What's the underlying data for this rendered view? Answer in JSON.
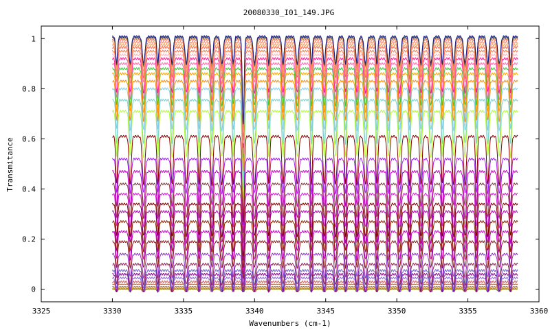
{
  "chart_data": {
    "type": "line",
    "title": "20080330_I01_149.JPG",
    "xlabel": "Wavenumbers (cm-1)",
    "ylabel": "Transmitance",
    "xlim": [
      3325,
      3360
    ],
    "ylim": [
      -0.05,
      1.05
    ],
    "x_range": [
      3330,
      3358.5
    ],
    "x_ticks": [
      "3325",
      "3330",
      "3335",
      "3340",
      "3345",
      "3350",
      "3355",
      "3360"
    ],
    "y_ticks": [
      "0",
      "0.2",
      "0.4",
      "0.6",
      "0.8",
      "1"
    ],
    "x_tick_values": [
      3325,
      3330,
      3335,
      3340,
      3345,
      3350,
      3355,
      3360
    ],
    "y_tick_values": [
      0,
      0.2,
      0.4,
      0.6,
      0.8,
      1
    ],
    "grid": false,
    "legend": "none",
    "absorption_lines": [
      3330.3,
      3331.25,
      3332.2,
      3333.2,
      3334.2,
      3335.2,
      3336.1,
      3337.0,
      3337.7,
      3338.5,
      3339.2,
      3340.0,
      3341.0,
      3342.0,
      3343.0,
      3344.0,
      3344.9,
      3345.7,
      3346.4,
      3347.2,
      3347.8,
      3348.6,
      3349.4,
      3350.2,
      3350.9,
      3351.7,
      3352.4,
      3353.2,
      3354.0,
      3354.8,
      3355.6,
      3356.4,
      3357.2,
      3358.0
    ],
    "series": [
      {
        "baseline": 0.0,
        "color": "#808000"
      },
      {
        "baseline": 0.004,
        "color": "#b8860b"
      },
      {
        "baseline": 0.01,
        "color": "#8b4513"
      },
      {
        "baseline": 0.02,
        "color": "#a0522d"
      },
      {
        "baseline": 0.03,
        "color": "#cd5c5c"
      },
      {
        "baseline": 0.045,
        "color": "#9370db"
      },
      {
        "baseline": 0.06,
        "color": "#8b008b"
      },
      {
        "baseline": 0.075,
        "color": "#6a5acd"
      },
      {
        "baseline": 0.1,
        "color": "#8b2252"
      },
      {
        "baseline": 0.14,
        "color": "#9932cc"
      },
      {
        "baseline": 0.19,
        "color": "#8b1a1a"
      },
      {
        "baseline": 0.23,
        "color": "#c000c0"
      },
      {
        "baseline": 0.27,
        "color": "#8b2500"
      },
      {
        "baseline": 0.31,
        "color": "#b000b0"
      },
      {
        "baseline": 0.34,
        "color": "#800000"
      },
      {
        "baseline": 0.38,
        "color": "#d020d0"
      },
      {
        "baseline": 0.42,
        "color": "#8b3a3a"
      },
      {
        "baseline": 0.47,
        "color": "#c000c0"
      },
      {
        "baseline": 0.52,
        "color": "#a020f0"
      },
      {
        "baseline": 0.61,
        "color": "#8b0000"
      },
      {
        "baseline": 0.71,
        "color": "#adff2f"
      },
      {
        "baseline": 0.755,
        "color": "#7fd0d0"
      },
      {
        "baseline": 0.8,
        "color": "#87ceeb"
      },
      {
        "baseline": 0.83,
        "color": "#ff8c00"
      },
      {
        "baseline": 0.86,
        "color": "#ffa500"
      },
      {
        "baseline": 0.88,
        "color": "#32cd32"
      },
      {
        "baseline": 0.9,
        "color": "#ff69b4"
      },
      {
        "baseline": 0.92,
        "color": "#ff1493"
      },
      {
        "baseline": 0.935,
        "color": "#ffb6c1"
      },
      {
        "baseline": 0.95,
        "color": "#ff7f50"
      },
      {
        "baseline": 0.965,
        "color": "#ff6347"
      },
      {
        "baseline": 0.975,
        "color": "#f4a460"
      },
      {
        "baseline": 0.985,
        "color": "#ff8c69"
      },
      {
        "baseline": 0.995,
        "color": "#fa8072"
      },
      {
        "baseline": 1.0,
        "color": "#cd853f"
      },
      {
        "baseline": 1.005,
        "color": "#2f4f4f"
      },
      {
        "baseline": 1.008,
        "color": "#1e1e8b"
      }
    ]
  }
}
